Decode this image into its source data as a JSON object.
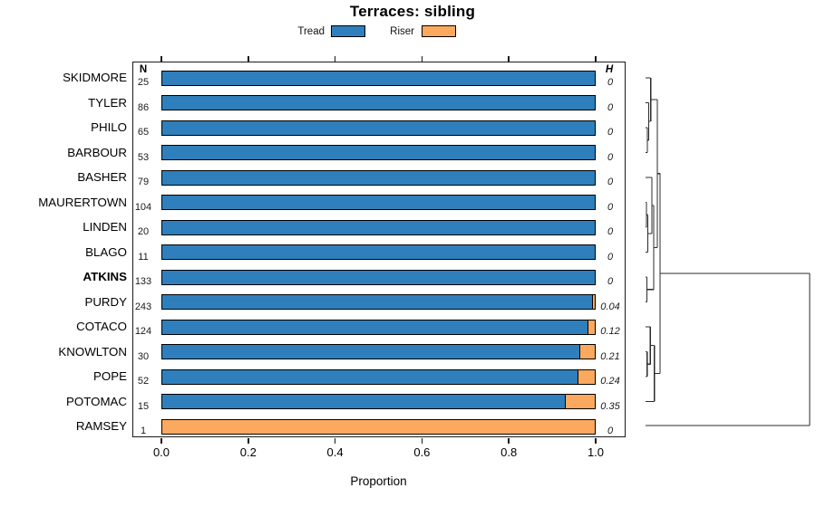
{
  "title": "Terraces: sibling",
  "legend": [
    {
      "label": "Tread",
      "color": "#2f7fbc"
    },
    {
      "label": "Riser",
      "color": "#fba95f"
    }
  ],
  "columns": {
    "n_header": "N",
    "h_header": "H"
  },
  "axis": {
    "label": "Proportion",
    "tick_labels": [
      "0.0",
      "0.2",
      "0.4",
      "0.6",
      "0.8",
      "1.0"
    ],
    "tick_values": [
      0,
      0.2,
      0.4,
      0.6,
      0.8,
      1.0
    ],
    "range": [
      0,
      1
    ]
  },
  "rows": [
    {
      "label": "SKIDMORE",
      "n": "25",
      "tread": 1.0,
      "riser": 0.0,
      "h": "0",
      "bold": false
    },
    {
      "label": "TYLER",
      "n": "86",
      "tread": 1.0,
      "riser": 0.0,
      "h": "0",
      "bold": false
    },
    {
      "label": "PHILO",
      "n": "65",
      "tread": 1.0,
      "riser": 0.0,
      "h": "0",
      "bold": false
    },
    {
      "label": "BARBOUR",
      "n": "53",
      "tread": 1.0,
      "riser": 0.0,
      "h": "0",
      "bold": false
    },
    {
      "label": "BASHER",
      "n": "79",
      "tread": 1.0,
      "riser": 0.0,
      "h": "0",
      "bold": false
    },
    {
      "label": "MAURERTOWN",
      "n": "104",
      "tread": 1.0,
      "riser": 0.0,
      "h": "0",
      "bold": false
    },
    {
      "label": "LINDEN",
      "n": "20",
      "tread": 1.0,
      "riser": 0.0,
      "h": "0",
      "bold": false
    },
    {
      "label": "BLAGO",
      "n": "11",
      "tread": 1.0,
      "riser": 0.0,
      "h": "0",
      "bold": false
    },
    {
      "label": "ATKINS",
      "n": "133",
      "tread": 1.0,
      "riser": 0.0,
      "h": "0",
      "bold": true
    },
    {
      "label": "PURDY",
      "n": "243",
      "tread": 0.9959,
      "riser": 0.0041,
      "h": "0.04",
      "bold": false
    },
    {
      "label": "COTACO",
      "n": "124",
      "tread": 0.9839,
      "riser": 0.0161,
      "h": "0.12",
      "bold": false
    },
    {
      "label": "KNOWLTON",
      "n": "30",
      "tread": 0.9667,
      "riser": 0.0333,
      "h": "0.21",
      "bold": false
    },
    {
      "label": "POPE",
      "n": "52",
      "tread": 0.9615,
      "riser": 0.0385,
      "h": "0.24",
      "bold": false
    },
    {
      "label": "POTOMAC",
      "n": "15",
      "tread": 0.9333,
      "riser": 0.0667,
      "h": "0.35",
      "bold": false
    },
    {
      "label": "RAMSEY",
      "n": "1",
      "tread": 0.0,
      "riser": 1.0,
      "h": "0",
      "bold": false
    }
  ],
  "chart_data": {
    "type": "bar",
    "orientation": "horizontal-stacked",
    "title": "Terraces: sibling",
    "xlabel": "Proportion",
    "xlim": [
      0,
      1
    ],
    "legend_position": "top",
    "categories": [
      "SKIDMORE",
      "TYLER",
      "PHILO",
      "BARBOUR",
      "BASHER",
      "MAURERTOWN",
      "LINDEN",
      "BLAGO",
      "ATKINS",
      "PURDY",
      "COTACO",
      "KNOWLTON",
      "POPE",
      "POTOMAC",
      "RAMSEY"
    ],
    "series": [
      {
        "name": "Tread",
        "color": "#2f7fbc",
        "values": [
          1.0,
          1.0,
          1.0,
          1.0,
          1.0,
          1.0,
          1.0,
          1.0,
          1.0,
          0.9959,
          0.9839,
          0.9667,
          0.9615,
          0.9333,
          0.0
        ]
      },
      {
        "name": "Riser",
        "color": "#fba95f",
        "values": [
          0.0,
          0.0,
          0.0,
          0.0,
          0.0,
          0.0,
          0.0,
          0.0,
          0.0,
          0.0041,
          0.0161,
          0.0333,
          0.0385,
          0.0667,
          1.0
        ]
      }
    ],
    "annotations": {
      "N": [
        25,
        86,
        65,
        53,
        79,
        104,
        20,
        11,
        133,
        243,
        124,
        30,
        52,
        15,
        1
      ],
      "H": [
        0,
        0,
        0,
        0,
        0,
        0,
        0,
        0,
        0,
        0.04,
        0.12,
        0.21,
        0.24,
        0.35,
        0
      ]
    },
    "right_panel": "dendrogram"
  },
  "dendrogram": {
    "color": "#2b2b2b",
    "units": "page-px",
    "segments": [
      [
        712,
        86,
        717.7,
        86
      ],
      [
        712,
        113.5,
        715.5,
        113.5
      ],
      [
        712,
        141,
        714,
        141
      ],
      [
        712,
        168.5,
        714,
        168.5
      ],
      [
        714,
        141,
        714,
        168.5
      ],
      [
        714,
        154.75,
        715.5,
        154.75
      ],
      [
        715.5,
        113.5,
        715.5,
        154.75
      ],
      [
        715.5,
        134,
        717.7,
        134
      ],
      [
        717.7,
        86,
        717.7,
        134
      ],
      [
        717.7,
        110,
        725,
        110
      ],
      [
        712,
        196,
        719,
        196
      ],
      [
        712,
        223.5,
        713,
        223.5
      ],
      [
        713,
        223.5,
        713,
        251
      ],
      [
        712,
        251,
        713,
        251
      ],
      [
        713,
        237.25,
        714.5,
        237.25
      ],
      [
        714.5,
        237.25,
        714.5,
        278.5
      ],
      [
        712,
        278.5,
        714.5,
        278.5
      ],
      [
        714.5,
        257.9,
        719,
        257.9
      ],
      [
        719,
        196,
        719,
        257.9
      ],
      [
        719,
        227,
        721,
        227
      ],
      [
        712,
        306,
        713.5,
        306
      ],
      [
        713.5,
        306,
        713.5,
        333.5
      ],
      [
        712,
        333.5,
        713.5,
        333.5
      ],
      [
        713.5,
        319.75,
        721,
        319.75
      ],
      [
        721,
        227,
        721,
        319.75
      ],
      [
        721,
        273.4,
        725,
        273.4
      ],
      [
        725,
        110,
        725,
        273.4
      ],
      [
        725,
        191.7,
        728,
        191.7
      ],
      [
        712,
        361,
        717.3,
        361
      ],
      [
        712,
        388.5,
        713.7,
        388.5
      ],
      [
        713.7,
        388.5,
        713.7,
        416
      ],
      [
        712,
        416,
        713.7,
        416
      ],
      [
        713.7,
        402.25,
        717.3,
        402.25
      ],
      [
        717.3,
        361,
        717.3,
        402.25
      ],
      [
        717.3,
        381.6,
        721.7,
        381.6
      ],
      [
        721.7,
        381.6,
        721.7,
        443.5
      ],
      [
        712,
        443.5,
        721.7,
        443.5
      ],
      [
        721.7,
        412.5,
        728,
        412.5
      ],
      [
        728,
        191.7,
        728,
        412.5
      ],
      [
        728,
        302,
        893,
        302
      ],
      [
        893,
        302,
        893,
        470
      ],
      [
        712,
        470,
        893,
        470
      ]
    ]
  }
}
